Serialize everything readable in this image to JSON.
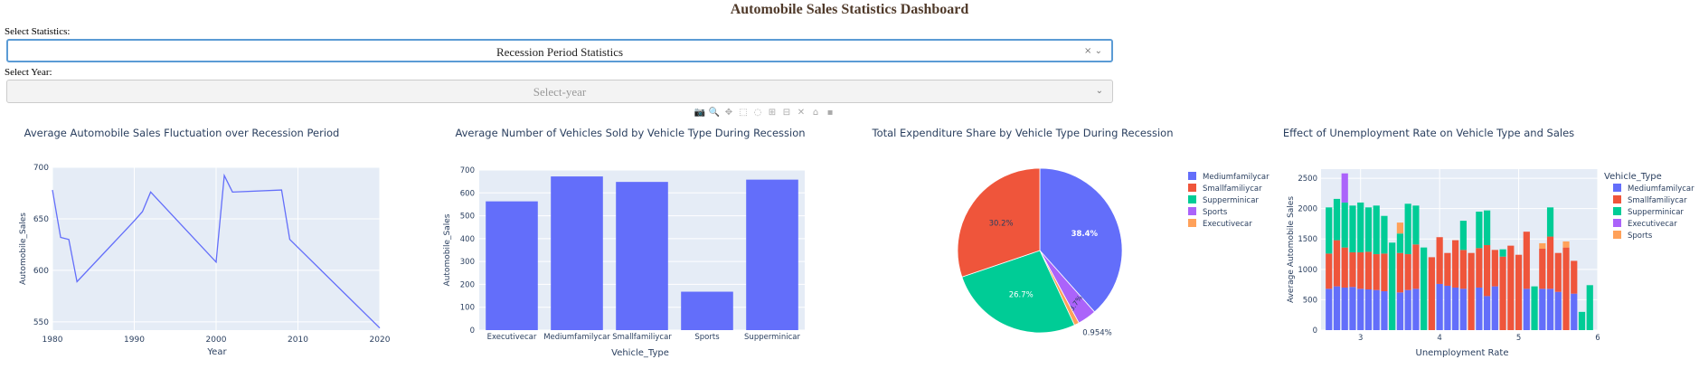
{
  "page": {
    "title": "Automobile Sales Statistics Dashboard",
    "select_statistics_label": "Select Statistics:",
    "select_statistics_value": "Recession Period Statistics",
    "select_year_label": "Select Year:",
    "select_year_placeholder": "Select-year",
    "clear_glyph": "×",
    "caret_glyph": "⌄"
  },
  "modebar": {
    "icons": [
      "camera-icon",
      "zoom-icon",
      "pan-icon",
      "box-select-icon",
      "lasso-icon",
      "zoom-in-icon",
      "zoom-out-icon",
      "autoscale-icon",
      "reset-axes-icon",
      "plotly-logo-icon"
    ],
    "glyphs": [
      "📷",
      "🔍",
      "✥",
      "⬚",
      "◌",
      "⊞",
      "⊟",
      "✕",
      "⌂",
      "▪"
    ]
  },
  "colors": {
    "bg": "#e5ecf6",
    "grid": "#ffffff",
    "blue": "#636efa",
    "red": "#ef553b",
    "green": "#00cc96",
    "purple": "#ab63fa",
    "orange": "#ffa15a",
    "text": "#2a3f5f"
  },
  "chart_data": [
    {
      "type": "line",
      "title": "Average Automobile Sales Fluctuation over Recession Period",
      "xlabel": "Year",
      "ylabel": "Automobile_Sales",
      "xlim": [
        1980,
        2020
      ],
      "ylim": [
        542,
        700
      ],
      "xticks": [
        1980,
        1990,
        2000,
        2010,
        2020
      ],
      "yticks": [
        550,
        600,
        650,
        700
      ],
      "x": [
        1980,
        1981,
        1982,
        1983,
        1990,
        1991,
        1992,
        2000,
        2001,
        2002,
        2008,
        2009,
        2020
      ],
      "y": [
        678,
        632,
        630,
        589,
        648,
        657,
        676,
        608,
        692,
        676,
        678,
        630,
        544
      ]
    },
    {
      "type": "bar",
      "title": "Average Number of Vehicles Sold by Vehicle Type During Recession",
      "xlabel": "Vehicle_Type",
      "ylabel": "Automobile_Sales",
      "ylim": [
        0,
        700
      ],
      "yticks": [
        0,
        100,
        200,
        300,
        400,
        500,
        600,
        700
      ],
      "categories": [
        "Executivecar",
        "Mediumfamilycar",
        "Smallfamiliycar",
        "Sports",
        "Supperminicar"
      ],
      "values": [
        563,
        672,
        648,
        168,
        658
      ]
    },
    {
      "type": "pie",
      "title": "Total Expenditure Share by Vehicle Type During Recession",
      "labels": [
        "Mediumfamilycar",
        "Smallfamiliycar",
        "Supperminicar",
        "Sports",
        "Executivecar"
      ],
      "values": [
        38.4,
        30.2,
        26.7,
        3.7,
        0.954
      ],
      "text": [
        "38.4%",
        "30.2%",
        "26.7%",
        "3.7%",
        "0.954%"
      ],
      "legend_position": "right"
    },
    {
      "type": "bar",
      "stacked": true,
      "title": "Effect of Unemployment Rate on Vehicle Type and Sales",
      "xlabel": "Unemployment Rate",
      "ylabel": "Average Automobile Sales",
      "xlim": [
        2.5,
        6.0
      ],
      "ylim": [
        0,
        2650
      ],
      "xticks": [
        3,
        4,
        5,
        6
      ],
      "yticks": [
        0,
        500,
        1000,
        1500,
        2000,
        2500
      ],
      "legend_title": "Vehicle_Type",
      "legend_position": "right",
      "x": [
        2.6,
        2.7,
        2.8,
        2.9,
        3.0,
        3.1,
        3.2,
        3.3,
        3.4,
        3.5,
        3.6,
        3.7,
        3.8,
        3.9,
        4.0,
        4.1,
        4.2,
        4.3,
        4.4,
        4.5,
        4.6,
        4.7,
        4.8,
        4.9,
        5.0,
        5.1,
        5.2,
        5.3,
        5.4,
        5.5,
        5.6,
        5.7,
        5.8,
        5.9
      ],
      "series": [
        {
          "name": "Mediumfamilycar",
          "values": [
            680,
            720,
            700,
            710,
            680,
            670,
            660,
            640,
            0,
            620,
            660,
            680,
            0,
            0,
            760,
            730,
            700,
            680,
            0,
            700,
            560,
            720,
            0,
            0,
            0,
            680,
            0,
            680,
            680,
            630,
            0,
            600,
            0,
            0
          ]
        },
        {
          "name": "Smallfamiliycar",
          "values": [
            580,
            760,
            660,
            570,
            600,
            620,
            590,
            620,
            0,
            650,
            590,
            730,
            0,
            1200,
            770,
            540,
            780,
            640,
            1270,
            650,
            840,
            600,
            1210,
            1390,
            1240,
            940,
            0,
            660,
            860,
            640,
            1360,
            540,
            0,
            0
          ]
        },
        {
          "name": "Supperminicar",
          "values": [
            760,
            680,
            740,
            770,
            820,
            730,
            800,
            620,
            1440,
            320,
            830,
            640,
            1360,
            0,
            0,
            0,
            0,
            480,
            0,
            600,
            570,
            0,
            120,
            0,
            0,
            0,
            720,
            0,
            480,
            0,
            0,
            0,
            300,
            740
          ]
        },
        {
          "name": "Executivecar",
          "values": [
            0,
            0,
            480,
            0,
            0,
            0,
            0,
            0,
            0,
            0,
            0,
            0,
            0,
            0,
            0,
            0,
            0,
            0,
            0,
            0,
            0,
            0,
            0,
            0,
            0,
            0,
            0,
            0,
            0,
            0,
            0,
            0,
            0,
            0
          ]
        },
        {
          "name": "Sports",
          "values": [
            0,
            0,
            0,
            0,
            0,
            0,
            0,
            0,
            0,
            180,
            0,
            0,
            0,
            0,
            0,
            0,
            0,
            0,
            0,
            0,
            0,
            0,
            0,
            0,
            0,
            0,
            0,
            90,
            0,
            0,
            100,
            0,
            0,
            0
          ]
        }
      ]
    }
  ]
}
